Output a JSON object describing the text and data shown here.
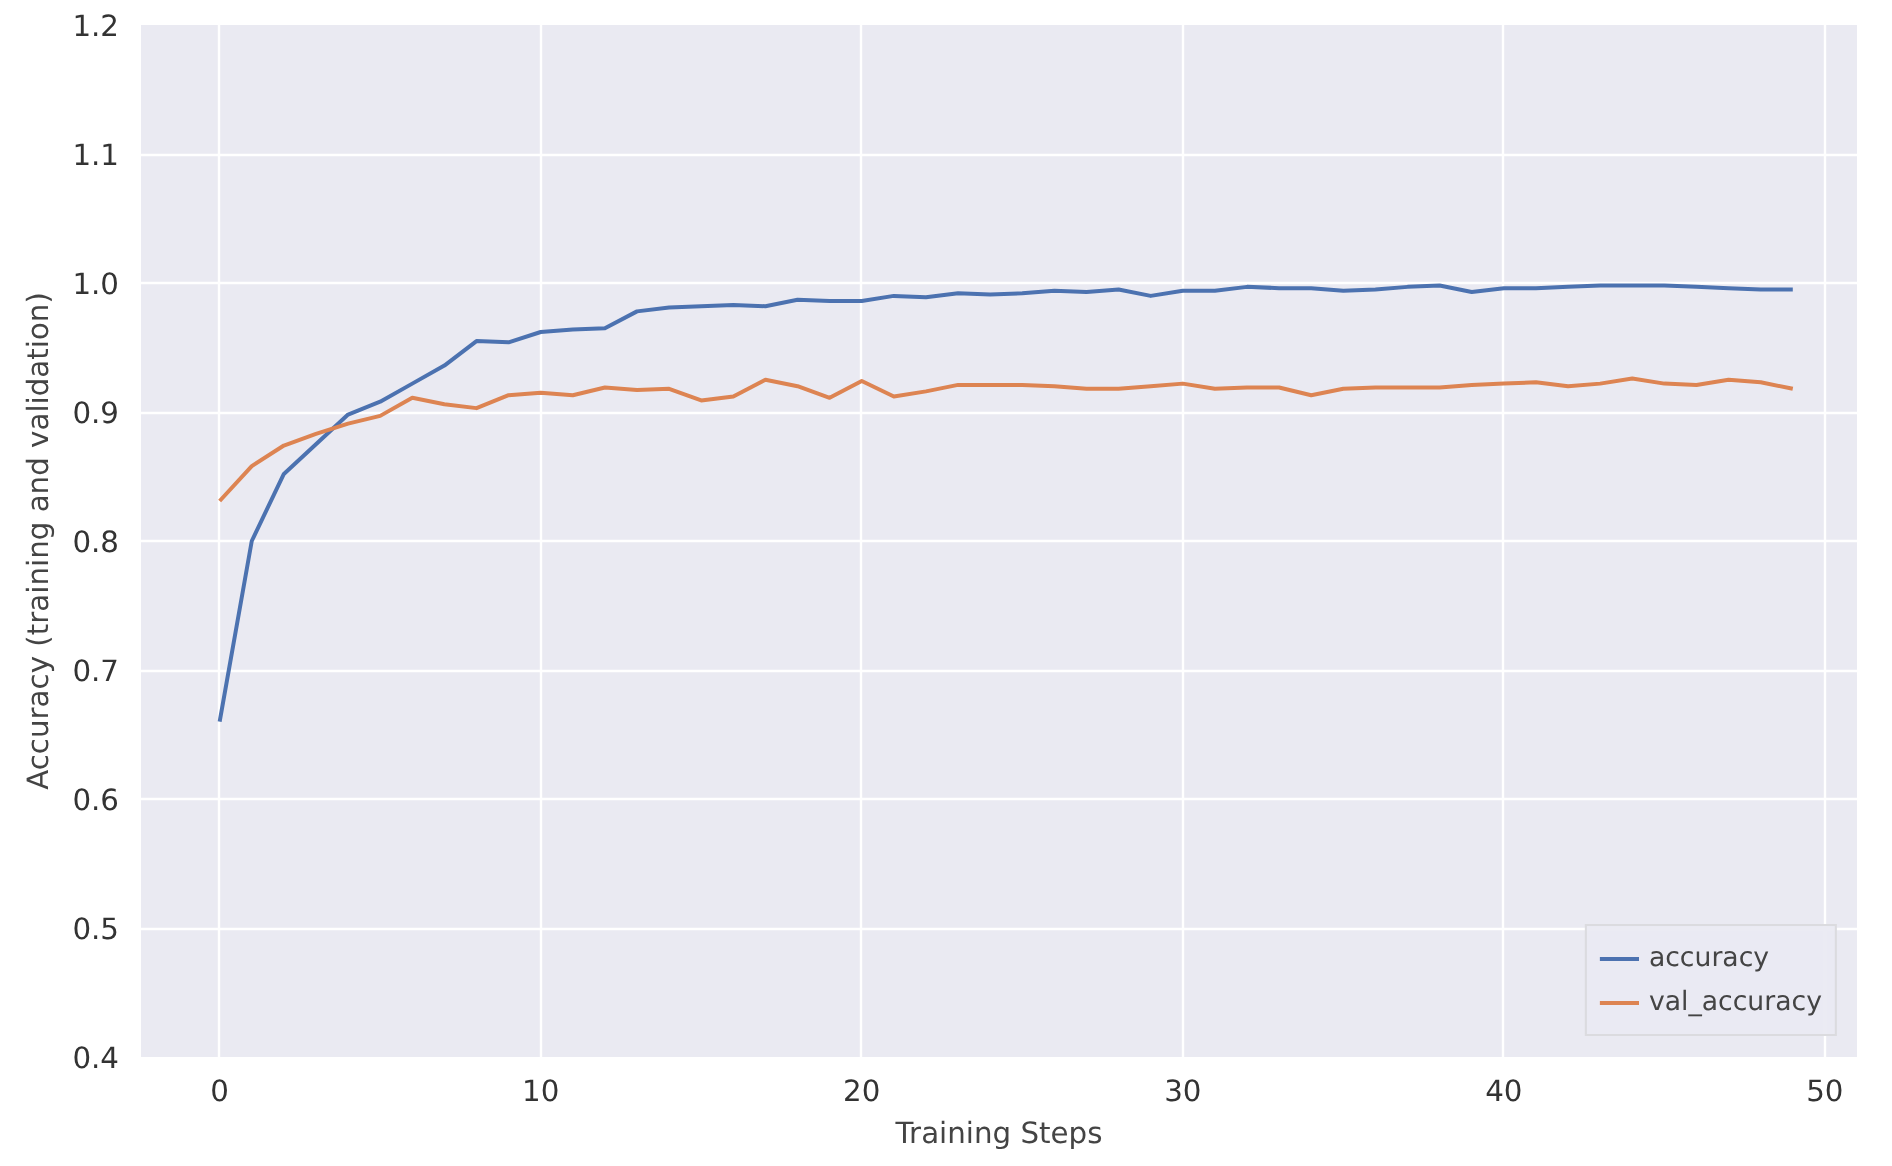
{
  "chart_data": {
    "type": "line",
    "xlabel": "Training Steps",
    "ylabel": "Accuracy (training and validation)",
    "x": [
      0,
      1,
      2,
      3,
      4,
      5,
      6,
      7,
      8,
      9,
      10,
      11,
      12,
      13,
      14,
      15,
      16,
      17,
      18,
      19,
      20,
      21,
      22,
      23,
      24,
      25,
      26,
      27,
      28,
      29,
      30,
      31,
      32,
      33,
      34,
      35,
      36,
      37,
      38,
      39,
      40,
      41,
      42,
      43,
      44,
      45,
      46,
      47,
      48,
      49
    ],
    "series": [
      {
        "name": "accuracy",
        "color": "#4c72b0",
        "values": [
          0.66,
          0.8,
          0.852,
          0.875,
          0.898,
          0.908,
          0.922,
          0.936,
          0.955,
          0.954,
          0.962,
          0.964,
          0.965,
          0.978,
          0.981,
          0.982,
          0.983,
          0.982,
          0.987,
          0.986,
          0.986,
          0.99,
          0.989,
          0.992,
          0.991,
          0.992,
          0.994,
          0.993,
          0.995,
          0.99,
          0.994,
          0.994,
          0.997,
          0.996,
          0.996,
          0.994,
          0.995,
          0.997,
          0.998,
          0.993,
          0.996,
          0.996,
          0.997,
          0.998,
          0.998,
          0.998,
          0.997,
          0.996,
          0.995,
          0.995
        ]
      },
      {
        "name": "val_accuracy",
        "color": "#dd8452",
        "values": [
          0.831,
          0.858,
          0.874,
          0.883,
          0.891,
          0.897,
          0.911,
          0.906,
          0.903,
          0.913,
          0.915,
          0.913,
          0.919,
          0.917,
          0.918,
          0.909,
          0.912,
          0.925,
          0.92,
          0.911,
          0.924,
          0.912,
          0.916,
          0.921,
          0.921,
          0.921,
          0.92,
          0.918,
          0.918,
          0.92,
          0.922,
          0.918,
          0.919,
          0.919,
          0.913,
          0.918,
          0.919,
          0.919,
          0.919,
          0.921,
          0.922,
          0.923,
          0.92,
          0.922,
          0.926,
          0.922,
          0.921,
          0.925,
          0.923,
          0.918
        ]
      }
    ],
    "xlim": [
      -2.45,
      51.0
    ],
    "ylim": [
      0.4,
      1.2
    ],
    "xticks": [
      0,
      10,
      20,
      30,
      40,
      50
    ],
    "yticks": [
      {
        "value": 0.4,
        "label": "0.4"
      },
      {
        "value": 0.5,
        "label": "0.5"
      },
      {
        "value": 0.6,
        "label": "0.6"
      },
      {
        "value": 0.7,
        "label": "0.7"
      },
      {
        "value": 0.8,
        "label": "0.8"
      },
      {
        "value": 0.9,
        "label": "0.9"
      },
      {
        "value": 1.0,
        "label": "1.0"
      },
      {
        "value": 1.1,
        "label": "1.1"
      },
      {
        "value": 1.2,
        "label": "1.2"
      }
    ],
    "grid": true,
    "legend": "bottom right",
    "line_style": "solid"
  }
}
